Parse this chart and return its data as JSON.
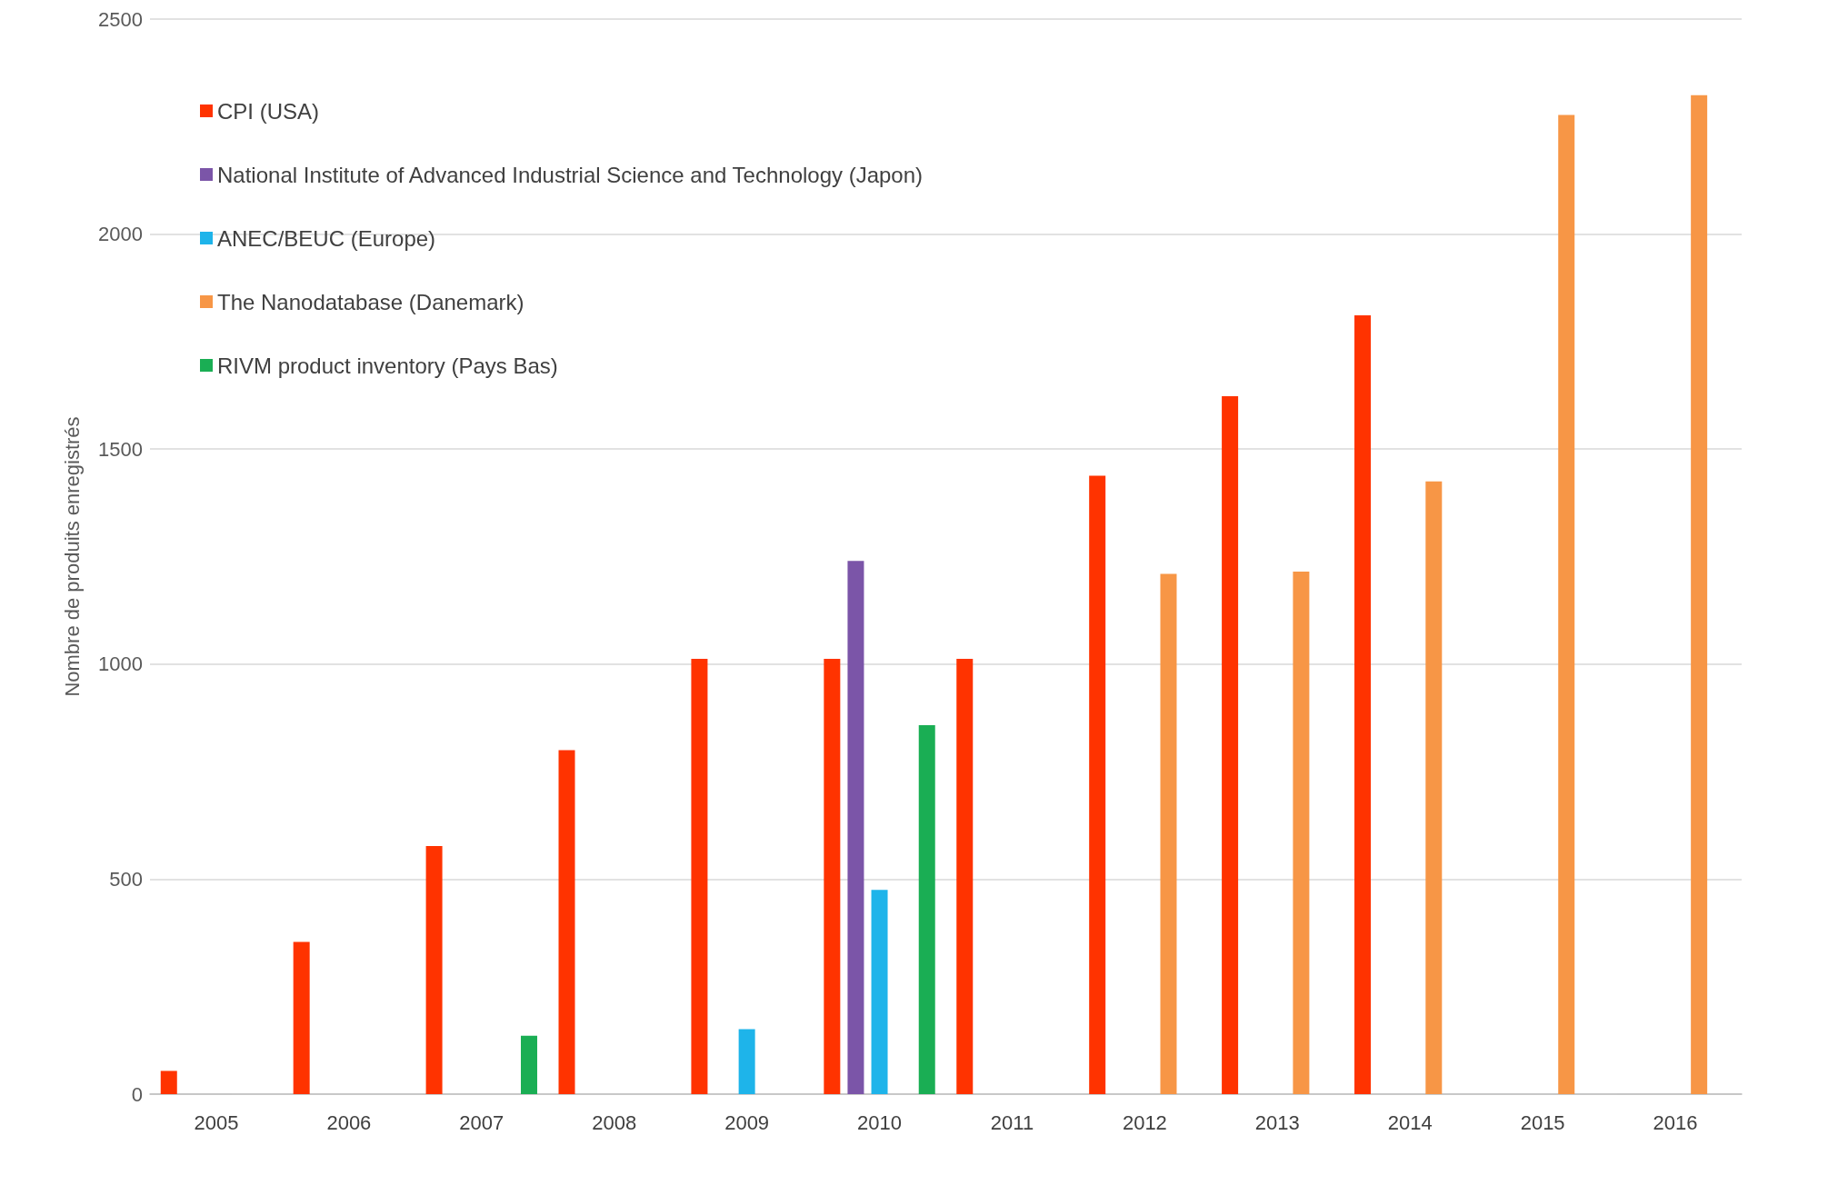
{
  "chart_data": {
    "type": "bar",
    "ylabel": "Nombre de produits enregistrés",
    "categories": [
      "2005",
      "2006",
      "2007",
      "2008",
      "2009",
      "2010",
      "2011",
      "2012",
      "2013",
      "2014",
      "2015",
      "2016"
    ],
    "series": [
      {
        "name": "CPI (USA)",
        "color": "#ff3300",
        "values": [
          54,
          354,
          577,
          800,
          1012,
          1012,
          1012,
          1438,
          1623,
          1811,
          null,
          null
        ]
      },
      {
        "name": "National Institute of Advanced Industrial Science and Technology (Japon)",
        "color": "#7b55a8",
        "values": [
          null,
          null,
          null,
          null,
          null,
          1240,
          null,
          null,
          null,
          null,
          null,
          null
        ]
      },
      {
        "name": "ANEC/BEUC (Europe)",
        "color": "#1eb4ea",
        "values": [
          null,
          null,
          null,
          null,
          151,
          475,
          null,
          null,
          null,
          null,
          null,
          null
        ]
      },
      {
        "name": "The Nanodatabase (Danemark)",
        "color": "#f79646",
        "values": [
          null,
          null,
          null,
          null,
          null,
          null,
          null,
          1210,
          1215,
          1425,
          2277,
          2323
        ]
      },
      {
        "name": "RIVM product inventory (Pays Bas)",
        "color": "#1aae54",
        "values": [
          null,
          null,
          136,
          null,
          null,
          858,
          null,
          null,
          null,
          null,
          null,
          null
        ]
      }
    ],
    "ylim": [
      0,
      2500
    ],
    "yticks": [
      0,
      500,
      1000,
      1500,
      2000,
      2500
    ],
    "grid": "y",
    "legend": "top left"
  }
}
